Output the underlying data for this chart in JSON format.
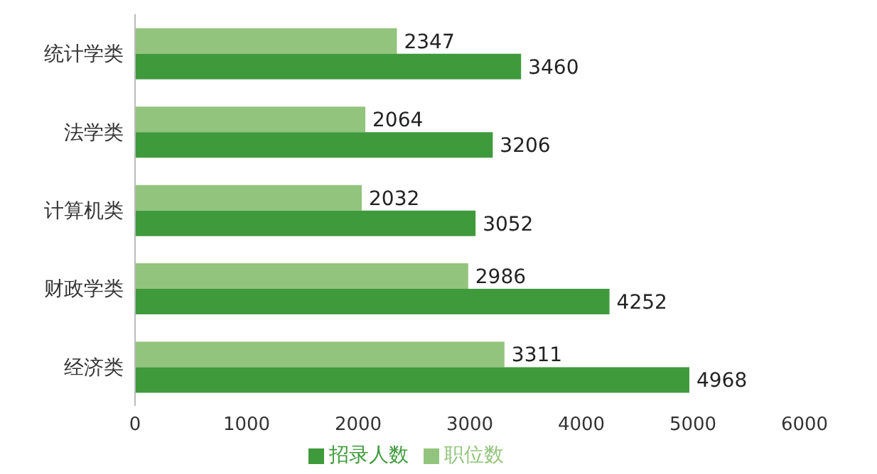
{
  "chart_data": {
    "type": "bar",
    "orientation": "horizontal",
    "categories": [
      "统计学类",
      "法学类",
      "计算机类",
      "财政学类",
      "经济类"
    ],
    "series": [
      {
        "name": "职位数",
        "color": "#93c47d",
        "values": [
          2347,
          2064,
          2032,
          2986,
          3311
        ]
      },
      {
        "name": "招录人数",
        "color": "#3f9a3c",
        "values": [
          3460,
          3206,
          3052,
          4252,
          4968
        ]
      }
    ],
    "xlim": [
      0,
      6000
    ],
    "xticks": [
      0,
      1000,
      2000,
      3000,
      4000,
      5000,
      6000
    ],
    "grid": false,
    "legend": "bottom",
    "data_labels": true
  }
}
